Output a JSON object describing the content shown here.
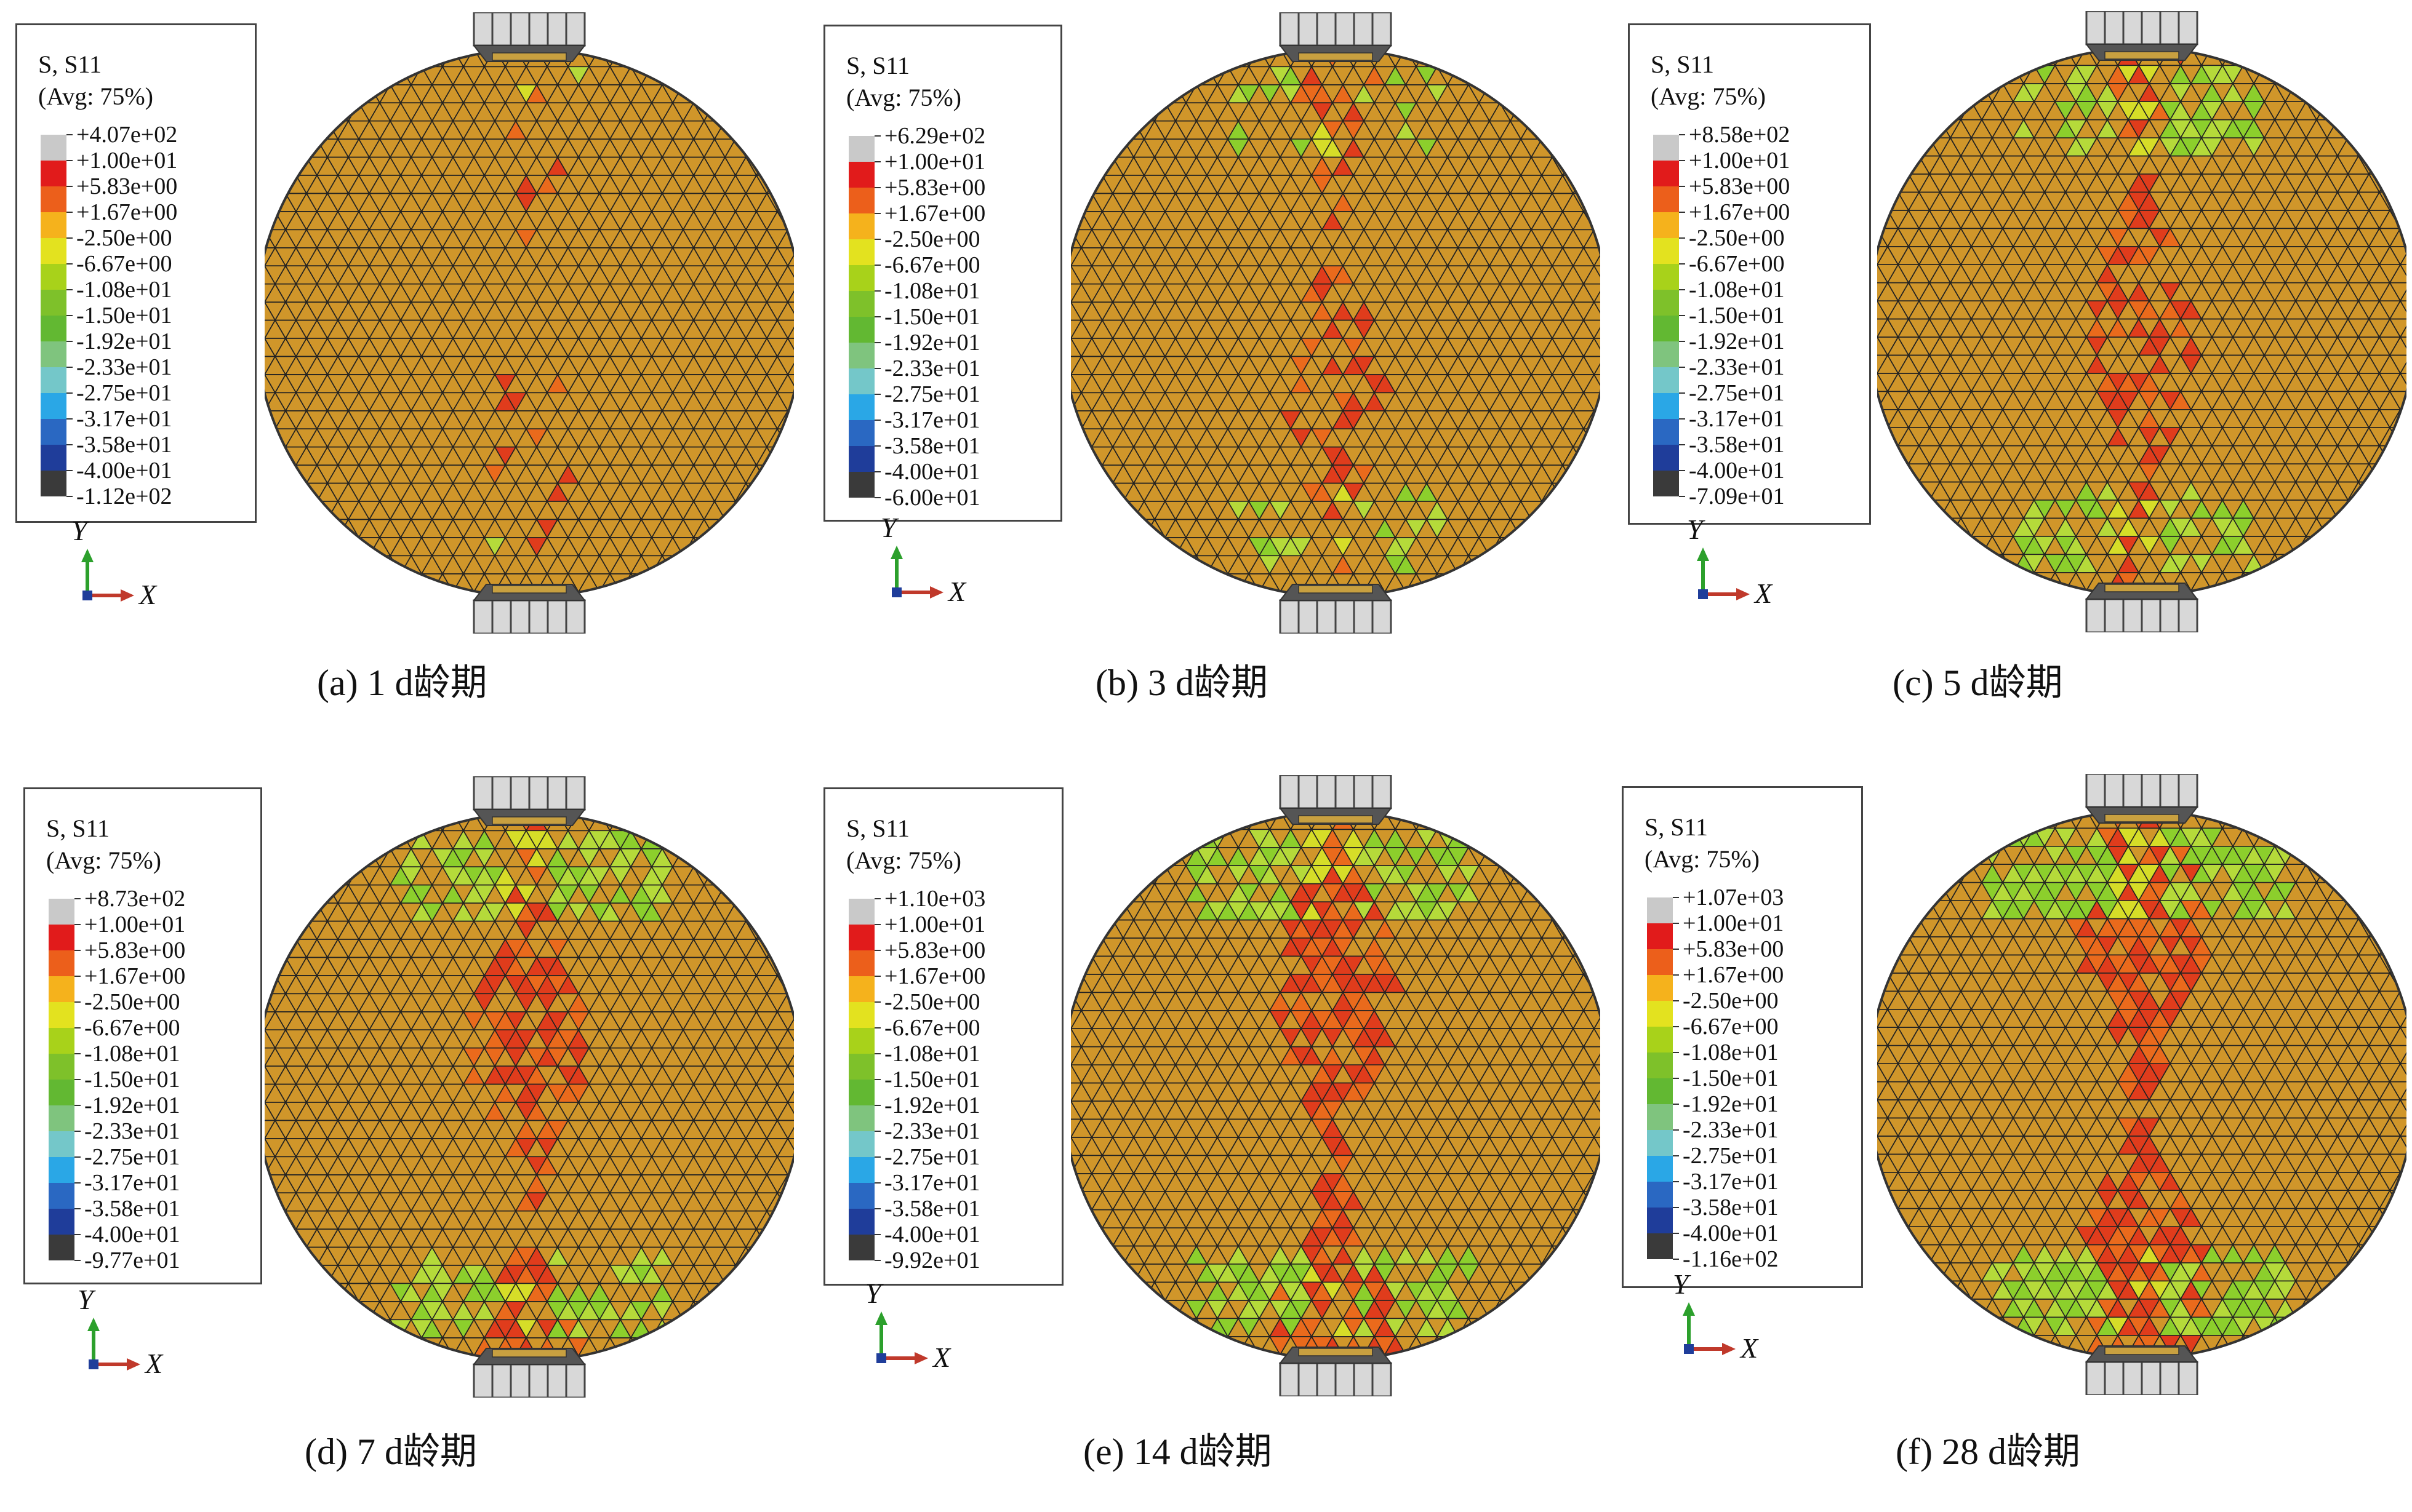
{
  "colorbar": [
    "#c9c9c9",
    "#e11b1b",
    "#ec5f1b",
    "#f5b21c",
    "#e3e21f",
    "#a8d21a",
    "#7ec12a",
    "#62b832",
    "#7fc47e",
    "#74c7c9",
    "#2aa7e6",
    "#2a68c2",
    "#1f3d9a",
    "#3a3a3a"
  ],
  "mesh_colors": {
    "base": "#d0962a",
    "red": "#e03c1c",
    "orange": "#ea6a1c",
    "yellow": "#d6dd28",
    "green": "#8ccf2c",
    "lightgreen": "#b5da3a",
    "mesh_line": "#222222",
    "clamp": "#d8d8d8"
  },
  "panels": [
    {
      "caption": "(a) 1 d龄期",
      "legend": {
        "title": "S, S11",
        "avg": "(Avg: 75%)",
        "values": [
          "+4.07e+02",
          "+1.00e+01",
          "+5.83e+00",
          "+1.67e+00",
          "-2.50e+00",
          "-6.67e+00",
          "-1.08e+01",
          "-1.50e+01",
          "-1.92e+01",
          "-2.33e+01",
          "-2.75e+01",
          "-3.17e+01",
          "-3.58e+01",
          "-4.00e+01",
          "-1.12e+02"
        ]
      },
      "axes": {
        "y": "Y",
        "x": "X"
      }
    },
    {
      "caption": "(b) 3 d龄期",
      "legend": {
        "title": "S, S11",
        "avg": "(Avg: 75%)",
        "values": [
          "+6.29e+02",
          "+1.00e+01",
          "+5.83e+00",
          "+1.67e+00",
          "-2.50e+00",
          "-6.67e+00",
          "-1.08e+01",
          "-1.50e+01",
          "-1.92e+01",
          "-2.33e+01",
          "-2.75e+01",
          "-3.17e+01",
          "-3.58e+01",
          "-4.00e+01",
          "-6.00e+01"
        ]
      },
      "axes": {
        "y": "Y",
        "x": "X"
      }
    },
    {
      "caption": "(c) 5 d龄期",
      "legend": {
        "title": "S, S11",
        "avg": "(Avg: 75%)",
        "values": [
          "+8.58e+02",
          "+1.00e+01",
          "+5.83e+00",
          "+1.67e+00",
          "-2.50e+00",
          "-6.67e+00",
          "-1.08e+01",
          "-1.50e+01",
          "-1.92e+01",
          "-2.33e+01",
          "-2.75e+01",
          "-3.17e+01",
          "-3.58e+01",
          "-4.00e+01",
          "-7.09e+01"
        ]
      },
      "axes": {
        "y": "Y",
        "x": "X"
      }
    },
    {
      "caption": "(d) 7 d龄期",
      "legend": {
        "title": "S, S11",
        "avg": "(Avg: 75%)",
        "values": [
          "+8.73e+02",
          "+1.00e+01",
          "+5.83e+00",
          "+1.67e+00",
          "-2.50e+00",
          "-6.67e+00",
          "-1.08e+01",
          "-1.50e+01",
          "-1.92e+01",
          "-2.33e+01",
          "-2.75e+01",
          "-3.17e+01",
          "-3.58e+01",
          "-4.00e+01",
          "-9.77e+01"
        ]
      },
      "axes": {
        "y": "Y",
        "x": "X"
      }
    },
    {
      "caption": "(e) 14 d龄期",
      "legend": {
        "title": "S, S11",
        "avg": "(Avg: 75%)",
        "values": [
          "+1.10e+03",
          "+1.00e+01",
          "+5.83e+00",
          "+1.67e+00",
          "-2.50e+00",
          "-6.67e+00",
          "-1.08e+01",
          "-1.50e+01",
          "-1.92e+01",
          "-2.33e+01",
          "-2.75e+01",
          "-3.17e+01",
          "-3.58e+01",
          "-4.00e+01",
          "-9.92e+01"
        ]
      },
      "axes": {
        "y": "Y",
        "x": "X"
      }
    },
    {
      "caption": "(f) 28 d龄期",
      "legend": {
        "title": "S, S11",
        "avg": "(Avg: 75%)",
        "values": [
          "+1.07e+03",
          "+1.00e+01",
          "+5.83e+00",
          "+1.67e+00",
          "-2.50e+00",
          "-6.67e+00",
          "-1.08e+01",
          "-1.50e+01",
          "-1.92e+01",
          "-2.33e+01",
          "-2.75e+01",
          "-3.17e+01",
          "-3.58e+01",
          "-4.00e+01",
          "-1.16e+02"
        ]
      },
      "axes": {
        "y": "Y",
        "x": "X"
      }
    }
  ]
}
